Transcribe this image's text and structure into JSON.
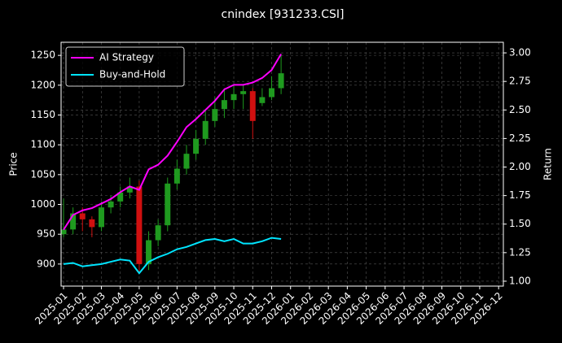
{
  "chart_data": {
    "type": "candlestick",
    "title": "cnindex [931233.CSI]",
    "ylabel": "Price",
    "y2label": "Return",
    "x": [
      0,
      0.5,
      1,
      1.5,
      2,
      2.5,
      3,
      3.5,
      4,
      4.5,
      5,
      5.5,
      6,
      6.5,
      7,
      7.5,
      8,
      8.5,
      9,
      9.5,
      10,
      10.5,
      11,
      11.5
    ],
    "open": [
      950,
      958,
      985,
      975,
      962,
      995,
      1005,
      1020,
      1030,
      900,
      940,
      965,
      1035,
      1060,
      1085,
      1110,
      1140,
      1160,
      1175,
      1185,
      1190,
      1170,
      1180,
      1195
    ],
    "high": [
      1010,
      995,
      995,
      980,
      1005,
      1015,
      1030,
      1045,
      1040,
      955,
      975,
      1045,
      1075,
      1100,
      1125,
      1160,
      1180,
      1195,
      1200,
      1200,
      1195,
      1195,
      1215,
      1250
    ],
    "low": [
      945,
      950,
      955,
      945,
      955,
      985,
      995,
      1010,
      885,
      890,
      930,
      955,
      1025,
      1050,
      1075,
      1100,
      1130,
      1145,
      1160,
      1160,
      1110,
      1165,
      1175,
      1185
    ],
    "close": [
      958,
      985,
      975,
      962,
      995,
      1005,
      1020,
      1030,
      900,
      940,
      965,
      1035,
      1060,
      1085,
      1110,
      1140,
      1160,
      1175,
      1185,
      1190,
      1140,
      1180,
      1195,
      1220
    ],
    "up_color": "#1f9a1f",
    "down_color": "#d01010",
    "series": [
      {
        "name": "AI Strategy",
        "color": "#ff00ff",
        "axis": "y2",
        "values": [
          1.45,
          1.58,
          1.62,
          1.64,
          1.68,
          1.72,
          1.78,
          1.83,
          1.8,
          1.98,
          2.02,
          2.1,
          2.22,
          2.35,
          2.42,
          2.5,
          2.58,
          2.68,
          2.72,
          2.72,
          2.74,
          2.78,
          2.85,
          2.99
        ]
      },
      {
        "name": "Buy-and-Hold",
        "color": "#00e5ff",
        "axis": "y2",
        "values": [
          1.15,
          1.16,
          1.13,
          1.14,
          1.15,
          1.17,
          1.19,
          1.18,
          1.07,
          1.17,
          1.21,
          1.24,
          1.28,
          1.3,
          1.33,
          1.36,
          1.37,
          1.35,
          1.37,
          1.33,
          1.33,
          1.35,
          1.38,
          1.37
        ]
      }
    ],
    "xlim": [
      -0.13,
      23.25
    ],
    "xticks": [
      {
        "value": 0,
        "label": "2025-01"
      },
      {
        "value": 1,
        "label": "2025-02"
      },
      {
        "value": 2,
        "label": "2025-03"
      },
      {
        "value": 3,
        "label": "2025-04"
      },
      {
        "value": 4,
        "label": "2025-05"
      },
      {
        "value": 5,
        "label": "2025-06"
      },
      {
        "value": 6,
        "label": "2025-07"
      },
      {
        "value": 7,
        "label": "2025-08"
      },
      {
        "value": 8,
        "label": "2025-09"
      },
      {
        "value": 9,
        "label": "2025-10"
      },
      {
        "value": 10,
        "label": "2025-11"
      },
      {
        "value": 11,
        "label": "2025-12"
      },
      {
        "value": 12,
        "label": "2026-01"
      },
      {
        "value": 13,
        "label": "2026-02"
      },
      {
        "value": 14,
        "label": "2026-03"
      },
      {
        "value": 15,
        "label": "2026-04"
      },
      {
        "value": 16,
        "label": "2026-05"
      },
      {
        "value": 17,
        "label": "2026-06"
      },
      {
        "value": 18,
        "label": "2026-07"
      },
      {
        "value": 19,
        "label": "2026-08"
      },
      {
        "value": 20,
        "label": "2026-09"
      },
      {
        "value": 21,
        "label": "2026-10"
      },
      {
        "value": 22,
        "label": "2026-11"
      },
      {
        "value": 23,
        "label": "2026-12"
      }
    ],
    "ylim": [
      863,
      1272
    ],
    "yticks": [
      900,
      950,
      1000,
      1050,
      1100,
      1150,
      1200,
      1250
    ],
    "y2lim": [
      0.957,
      3.093
    ],
    "y2ticks": [
      {
        "value": 1,
        "label": "1.00"
      },
      {
        "value": 1.25,
        "label": "1.25"
      },
      {
        "value": 1.5,
        "label": "1.50"
      },
      {
        "value": 1.75,
        "label": "1.75"
      },
      {
        "value": 2,
        "label": "2.00"
      },
      {
        "value": 2.25,
        "label": "2.25"
      },
      {
        "value": 2.5,
        "label": "2.50"
      },
      {
        "value": 2.75,
        "label": "2.75"
      },
      {
        "value": 3,
        "label": "3.00"
      }
    ],
    "grid": true,
    "legend": "upper left"
  }
}
